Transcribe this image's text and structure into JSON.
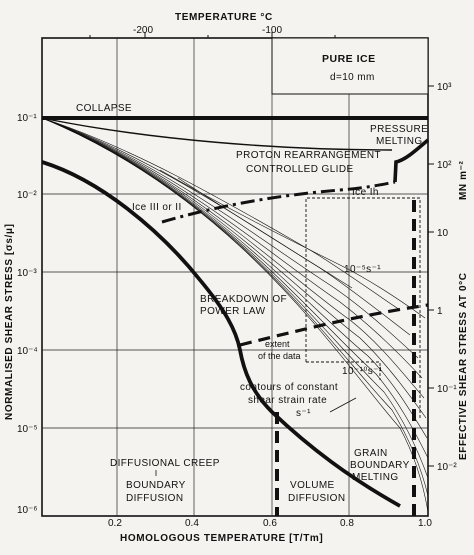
{
  "figure": {
    "top_axis_title": "TEMPERATURE °C",
    "top_ticks": [
      "-200",
      "-100"
    ],
    "bottom_axis_title": "HOMOLOGOUS TEMPERATURE [T/Tm]",
    "bottom_ticks": [
      "0.2",
      "0.4",
      "0.6",
      "0.8",
      "1.0"
    ],
    "left_axis_title": "NORMALISED SHEAR STRESS [σs/μ]",
    "left_ticks": [
      "10⁻¹",
      "10⁻²",
      "10⁻³",
      "10⁻⁴",
      "10⁻⁵",
      "10⁻⁶"
    ],
    "right_axis_title": "EFFECTIVE SHEAR STRESS AT 0°C",
    "right_unit": "MN m⁻²",
    "right_ticks": [
      "10³",
      "10²",
      "10",
      "1",
      "10⁻¹",
      "10⁻²"
    ],
    "legend_title": "PURE ICE",
    "legend_grain": "d=10 mm"
  },
  "labels": {
    "collapse": "COLLAPSE",
    "pressure_melting_1": "PRESSURE",
    "pressure_melting_2": "MELTING",
    "proton_1": "PROTON REARRANGEMENT",
    "proton_2": "CONTROLLED GLIDE",
    "ice_ih": "Ice Ih",
    "ice_iii": "Ice III or II",
    "rate_upper": "10⁻⁵s⁻¹",
    "breakdown_1": "BREAKDOWN OF",
    "breakdown_2": "POWER LAW",
    "extent_1": "extent",
    "extent_2": "of the data",
    "rate_lower": "10⁻¹⁰s⁻¹",
    "contours_1": "contours of constant",
    "contours_2": "shear strain rate",
    "contours_3": "s⁻¹",
    "diffusional_creep": "DIFFUSIONAL CREEP",
    "boundary_1": "BOUNDARY",
    "boundary_2": "DIFFUSION",
    "volume_1": "VOLUME",
    "volume_2": "DIFFUSION",
    "grain_1": "GRAIN",
    "grain_2": "BOUNDARY",
    "grain_3": "MELTING"
  }
}
